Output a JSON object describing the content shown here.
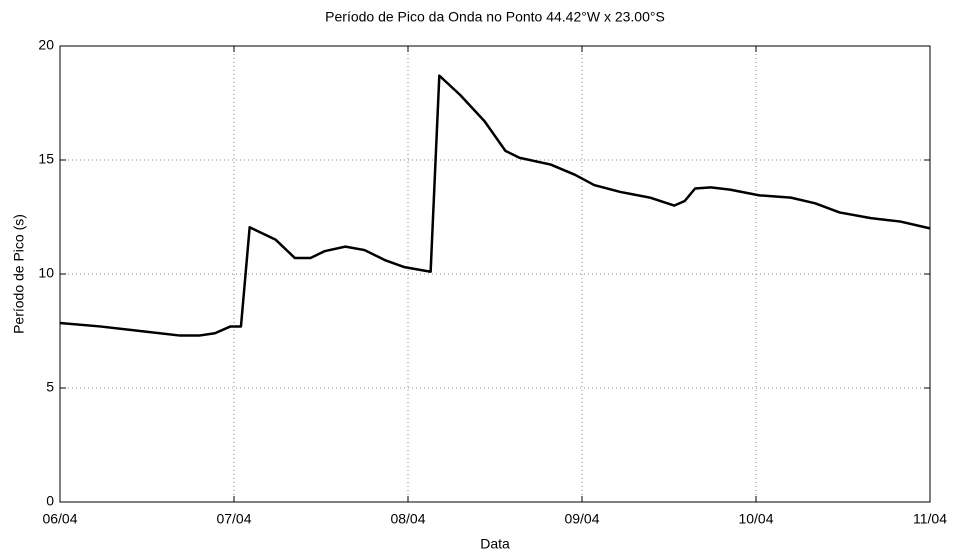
{
  "chart_data": {
    "type": "line",
    "title": "Período de Pico da Onda no Ponto 44.42°W x 23.00°S",
    "x_label": "Data",
    "y_label": "Período de Pico (s)",
    "x": [
      0,
      0.23,
      0.46,
      0.69,
      0.8,
      0.89,
      0.98,
      1.04,
      1.09,
      1.24,
      1.35,
      1.44,
      1.52,
      1.64,
      1.75,
      1.87,
      1.98,
      2.13,
      2.18,
      2.3,
      2.44,
      2.56,
      2.64,
      2.82,
      2.96,
      3.07,
      3.22,
      3.39,
      3.53,
      3.59,
      3.65,
      3.74,
      3.85,
      4.02,
      4.2,
      4.34,
      4.48,
      4.66,
      4.83,
      5
    ],
    "series": [
      {
        "name": "Período de Pico",
        "color": "#000000",
        "values": [
          7.85,
          7.7,
          7.5,
          7.3,
          7.3,
          7.4,
          7.7,
          7.7,
          12.05,
          11.5,
          10.7,
          10.7,
          11.0,
          11.2,
          11.05,
          10.6,
          10.3,
          10.1,
          18.7,
          17.85,
          16.7,
          15.4,
          15.1,
          14.8,
          14.35,
          13.9,
          13.6,
          13.35,
          13.0,
          13.2,
          13.75,
          13.8,
          13.7,
          13.45,
          13.35,
          13.1,
          12.7,
          12.45,
          12.3,
          12.0
        ]
      }
    ],
    "xlim": [
      0,
      5
    ],
    "xticks": [
      {
        "value": 0,
        "label": "06/04"
      },
      {
        "value": 1,
        "label": "07/04"
      },
      {
        "value": 2,
        "label": "08/04"
      },
      {
        "value": 3,
        "label": "09/04"
      },
      {
        "value": 4,
        "label": "10/04"
      },
      {
        "value": 5,
        "label": "11/04"
      }
    ],
    "ylim": [
      0,
      20
    ],
    "yticks": [
      0,
      5,
      10,
      15,
      20
    ],
    "grid": true
  }
}
